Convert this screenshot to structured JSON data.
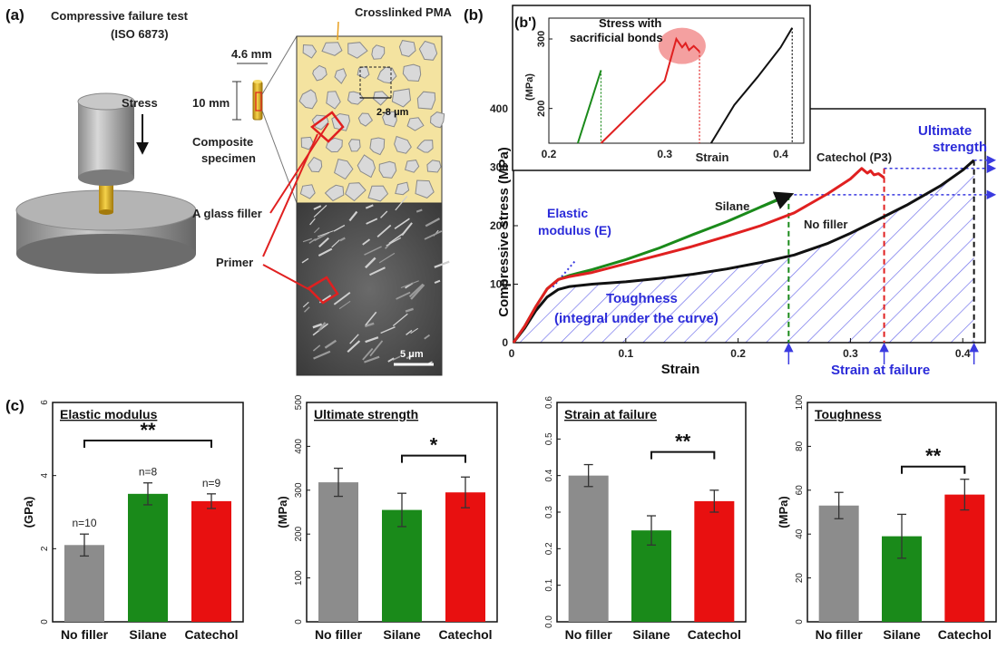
{
  "panel_a": {
    "label": "(a)",
    "title": "Compressive failure test",
    "subtitle": "(ISO 6873)",
    "stress_label": "Stress",
    "dim_width": "4.6 mm",
    "dim_height": "10 mm",
    "composite_label": "Composite specimen",
    "pma_label": "Crosslinked PMA",
    "particle_size": "2-8 μm",
    "glass_filler_label": "A glass filler",
    "primer_label": "Primer",
    "scale_bar": "5 μm",
    "colors": {
      "specimen": "#e8b92a",
      "pma": "#f4e3a0",
      "primer": "#e02020"
    }
  },
  "panel_b": {
    "label": "(b)",
    "inset_label": "(b')",
    "inset_title": "Stress with sacrificial bonds",
    "annotations": {
      "elastic": "Elastic modulus (E)",
      "toughness": "Toughness (integral under the curve)",
      "ultimate": "Ultimate strength",
      "strain_failure": "Strain at failure",
      "silane": "Silane",
      "no_filler": "No filler",
      "catechol": "Catechol (P3)"
    }
  },
  "panel_c": {
    "label": "(c)"
  },
  "chart_data": [
    {
      "type": "line",
      "title": "",
      "xlabel": "Strain",
      "ylabel": "Compressive stress (MPa)",
      "xlim": [
        0,
        0.42
      ],
      "ylim": [
        0,
        400
      ],
      "xticks": [
        "0.1",
        "0.2",
        "0.3",
        "0.4"
      ],
      "yticks": [
        "0",
        "100",
        "200",
        "300",
        "400"
      ],
      "series": [
        {
          "name": "No filler",
          "color": "#111111",
          "x": [
            0,
            0.01,
            0.02,
            0.03,
            0.04,
            0.05,
            0.07,
            0.1,
            0.13,
            0.16,
            0.19,
            0.22,
            0.25,
            0.28,
            0.3,
            0.32,
            0.35,
            0.38,
            0.4,
            0.41
          ],
          "y": [
            0,
            25,
            55,
            78,
            91,
            96,
            100,
            104,
            110,
            117,
            126,
            137,
            150,
            170,
            187,
            206,
            235,
            268,
            295,
            312
          ]
        },
        {
          "name": "Silane",
          "color": "#1a8a1a",
          "x": [
            0,
            0.01,
            0.02,
            0.03,
            0.04,
            0.05,
            0.07,
            0.1,
            0.13,
            0.16,
            0.19,
            0.22,
            0.245
          ],
          "y": [
            0,
            28,
            62,
            92,
            108,
            115,
            125,
            142,
            162,
            185,
            207,
            232,
            253
          ]
        },
        {
          "name": "Catechol (P3)",
          "color": "#e02020",
          "x": [
            0,
            0.01,
            0.02,
            0.03,
            0.04,
            0.05,
            0.07,
            0.1,
            0.13,
            0.16,
            0.19,
            0.22,
            0.25,
            0.28,
            0.3,
            0.31,
            0.315,
            0.318,
            0.321,
            0.325,
            0.33
          ],
          "y": [
            0,
            28,
            62,
            92,
            108,
            113,
            120,
            135,
            150,
            165,
            182,
            200,
            222,
            255,
            280,
            298,
            290,
            294,
            287,
            289,
            282
          ]
        }
      ],
      "failure_strains": [
        0.245,
        0.33,
        0.41
      ],
      "ultimate_strengths": [
        253,
        298,
        312
      ]
    },
    {
      "type": "line",
      "title": "Stress with sacrificial bonds",
      "xlabel": "Strain",
      "ylabel": "(MPa)",
      "xlim": [
        0.2,
        0.42
      ],
      "ylim": [
        150,
        330
      ],
      "xticks": [
        "0.2",
        "0.3",
        "0.4"
      ],
      "yticks": [
        "200",
        "300"
      ],
      "series": [
        {
          "color": "#1a8a1a",
          "x": [
            0.225,
            0.245
          ],
          "y": [
            150,
            255
          ]
        },
        {
          "color": "#e02020",
          "x": [
            0.245,
            0.3,
            0.31,
            0.315,
            0.318,
            0.321,
            0.325,
            0.33
          ],
          "y": [
            150,
            240,
            300,
            288,
            294,
            284,
            290,
            282
          ]
        },
        {
          "color": "#111111",
          "x": [
            0.34,
            0.36,
            0.38,
            0.4,
            0.41
          ],
          "y": [
            150,
            205,
            245,
            288,
            316
          ]
        }
      ]
    },
    {
      "type": "bar",
      "title": "Elastic modulus",
      "ylabel": "(GPa)",
      "categories": [
        "No filler",
        "Silane",
        "Catechol"
      ],
      "values": [
        2.1,
        3.5,
        3.3
      ],
      "errors": [
        0.3,
        0.3,
        0.2
      ],
      "colors": [
        "#8c8c8c",
        "#1a8a1a",
        "#e81010"
      ],
      "ylim": [
        0,
        6
      ],
      "yticks": [
        "0",
        "2",
        "4",
        "6"
      ],
      "n_labels": [
        "n=10",
        "n=8",
        "n=9"
      ],
      "significance": [
        {
          "from": 0,
          "to": 2,
          "label": "**"
        }
      ]
    },
    {
      "type": "bar",
      "title": "Ultimate strength",
      "ylabel": "(MPa)",
      "categories": [
        "No filler",
        "Silane",
        "Catechol"
      ],
      "values": [
        318,
        255,
        295
      ],
      "errors": [
        32,
        38,
        35
      ],
      "colors": [
        "#8c8c8c",
        "#1a8a1a",
        "#e81010"
      ],
      "ylim": [
        0,
        500
      ],
      "yticks": [
        "0",
        "100",
        "200",
        "300",
        "400",
        "500"
      ],
      "significance": [
        {
          "from": 1,
          "to": 2,
          "label": "*"
        }
      ]
    },
    {
      "type": "bar",
      "title": "Strain at failure",
      "ylabel": "",
      "categories": [
        "No filler",
        "Silane",
        "Catechol"
      ],
      "values": [
        0.4,
        0.25,
        0.33
      ],
      "errors": [
        0.03,
        0.04,
        0.03
      ],
      "colors": [
        "#8c8c8c",
        "#1a8a1a",
        "#e81010"
      ],
      "ylim": [
        0,
        0.6
      ],
      "yticks": [
        "0.0",
        "0.1",
        "0.2",
        "0.3",
        "0.4",
        "0.5",
        "0.6"
      ],
      "significance": [
        {
          "from": 1,
          "to": 2,
          "label": "**"
        }
      ]
    },
    {
      "type": "bar",
      "title": "Toughness",
      "ylabel": "(MPa)",
      "categories": [
        "No filler",
        "Silane",
        "Catechol"
      ],
      "values": [
        53,
        39,
        58
      ],
      "errors": [
        6,
        10,
        7
      ],
      "colors": [
        "#8c8c8c",
        "#1a8a1a",
        "#e81010"
      ],
      "ylim": [
        0,
        100
      ],
      "yticks": [
        "0",
        "20",
        "40",
        "60",
        "80",
        "100"
      ],
      "significance": [
        {
          "from": 1,
          "to": 2,
          "label": "**"
        }
      ]
    }
  ]
}
